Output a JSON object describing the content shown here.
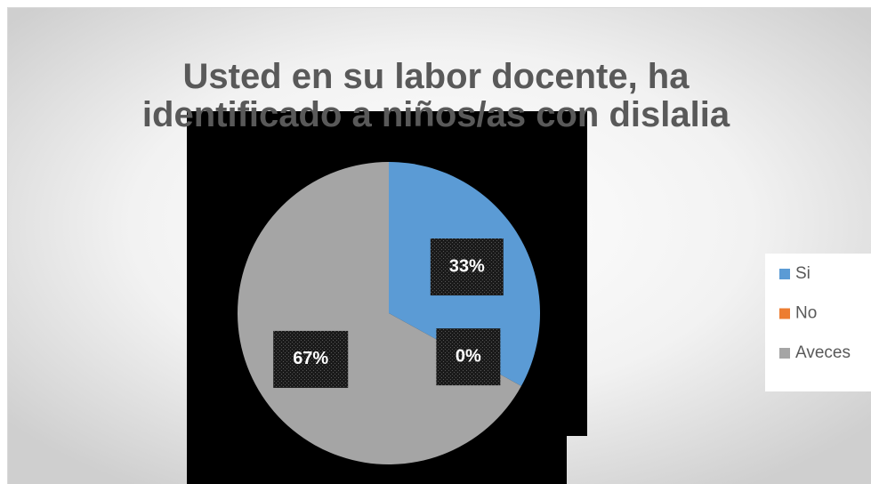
{
  "chart_data": {
    "type": "pie",
    "title": "Usted en su labor docente, ha identificado a niños/as con dislalia",
    "categories": [
      "Si",
      "No",
      "Aveces"
    ],
    "values": [
      33,
      0,
      67
    ],
    "value_labels": [
      "33%",
      "0%",
      "67%"
    ],
    "colors": [
      "#5b9bd5",
      "#ed7d31",
      "#a5a5a5"
    ],
    "legend": "right"
  }
}
